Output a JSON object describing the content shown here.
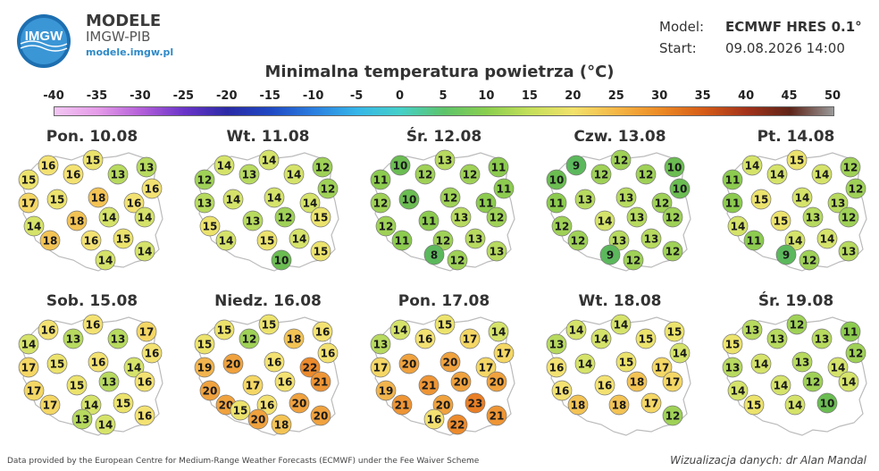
{
  "brand": {
    "logo_text": "IMGW",
    "name": "MODELE",
    "org": "IMGW-PIB",
    "url": "modele.imgw.pl"
  },
  "model_info": {
    "model_label": "Model:",
    "model_value": "ECMWF HRES 0.1°",
    "start_label": "Start:",
    "start_value": "09.08.2026 14:00"
  },
  "title": "Minimalna temperatura powietrza (°C)",
  "scale": {
    "ticks": [
      "-40",
      "-35",
      "-30",
      "-25",
      "-20",
      "-15",
      "-10",
      "-5",
      "0",
      "5",
      "10",
      "15",
      "20",
      "25",
      "30",
      "35",
      "40",
      "45",
      "50"
    ],
    "colors": [
      "#f2c6f2",
      "#e59be8",
      "#b45fd9",
      "#6a34c9",
      "#2a2aa6",
      "#1f49c4",
      "#2b7fe0",
      "#36b6e8",
      "#45d0c8",
      "#5ec46a",
      "#8bcf4f",
      "#c5df5a",
      "#f2e16b",
      "#f5b646",
      "#ec8a25",
      "#d65c18",
      "#a3321a",
      "#5e2418",
      "#999999"
    ]
  },
  "temperature_colors": {
    "8": "#5cb85c",
    "9": "#5cb85c",
    "10": "#6bbd52",
    "11": "#8ccb4f",
    "12": "#9fd157",
    "13": "#b7da5f",
    "14": "#d5e36a",
    "15": "#ece36d",
    "16": "#f3e272",
    "17": "#f4d765",
    "18": "#f3c354",
    "19": "#f2b44d",
    "20": "#f0a23e",
    "21": "#ee9535",
    "22": "#ec8a2c",
    "23": "#e97f26"
  },
  "panels": [
    {
      "day": "Pon. 10.08",
      "values": [
        16,
        15,
        13,
        15,
        16,
        13,
        16,
        17,
        15,
        18,
        16,
        14,
        18,
        14,
        14,
        18,
        16,
        15,
        14,
        14
      ]
    },
    {
      "day": "Wt. 11.08",
      "values": [
        14,
        14,
        12,
        12,
        13,
        14,
        12,
        13,
        14,
        14,
        14,
        15,
        13,
        12,
        15,
        14,
        15,
        14,
        15,
        10
      ]
    },
    {
      "day": "Śr. 12.08",
      "values": [
        10,
        13,
        11,
        11,
        12,
        12,
        11,
        12,
        10,
        12,
        11,
        12,
        11,
        13,
        12,
        11,
        12,
        13,
        13,
        12,
        8
      ]
    },
    {
      "day": "Czw. 13.08",
      "values": [
        9,
        12,
        10,
        10,
        12,
        12,
        10,
        11,
        13,
        13,
        12,
        12,
        14,
        13,
        12,
        12,
        13,
        13,
        12,
        12,
        9
      ]
    },
    {
      "day": "Pt. 14.08",
      "values": [
        14,
        15,
        12,
        11,
        14,
        14,
        12,
        11,
        15,
        14,
        13,
        14,
        15,
        13,
        12,
        11,
        14,
        14,
        13,
        12,
        9
      ]
    },
    {
      "day": "Sob. 15.08",
      "values": [
        16,
        16,
        17,
        14,
        13,
        13,
        16,
        17,
        15,
        16,
        14,
        17,
        15,
        13,
        16,
        17,
        14,
        15,
        16,
        14,
        13
      ]
    },
    {
      "day": "Niedz. 16.08",
      "values": [
        15,
        15,
        16,
        15,
        12,
        18,
        16,
        19,
        20,
        16,
        22,
        20,
        17,
        16,
        21,
        20,
        16,
        20,
        20,
        18,
        20,
        15
      ]
    },
    {
      "day": "Pon. 17.08",
      "values": [
        14,
        15,
        14,
        13,
        16,
        17,
        17,
        17,
        20,
        20,
        17,
        19,
        21,
        20,
        20,
        21,
        20,
        23,
        21,
        22,
        16
      ]
    },
    {
      "day": "Wt. 18.08",
      "values": [
        14,
        14,
        15,
        13,
        14,
        15,
        14,
        16,
        14,
        15,
        17,
        16,
        16,
        18,
        17,
        18,
        18,
        17,
        12
      ]
    },
    {
      "day": "Śr. 19.08",
      "values": [
        13,
        12,
        11,
        15,
        13,
        13,
        12,
        13,
        14,
        13,
        14,
        14,
        14,
        12,
        14,
        15,
        14,
        10
      ]
    }
  ],
  "footer": {
    "source": "Data provided by the European Centre for Medium-Range Weather Forecasts (ECMWF) under the Fee Waiver Scheme",
    "credit": "Wizualizacja danych: dr Alan Mandal"
  }
}
